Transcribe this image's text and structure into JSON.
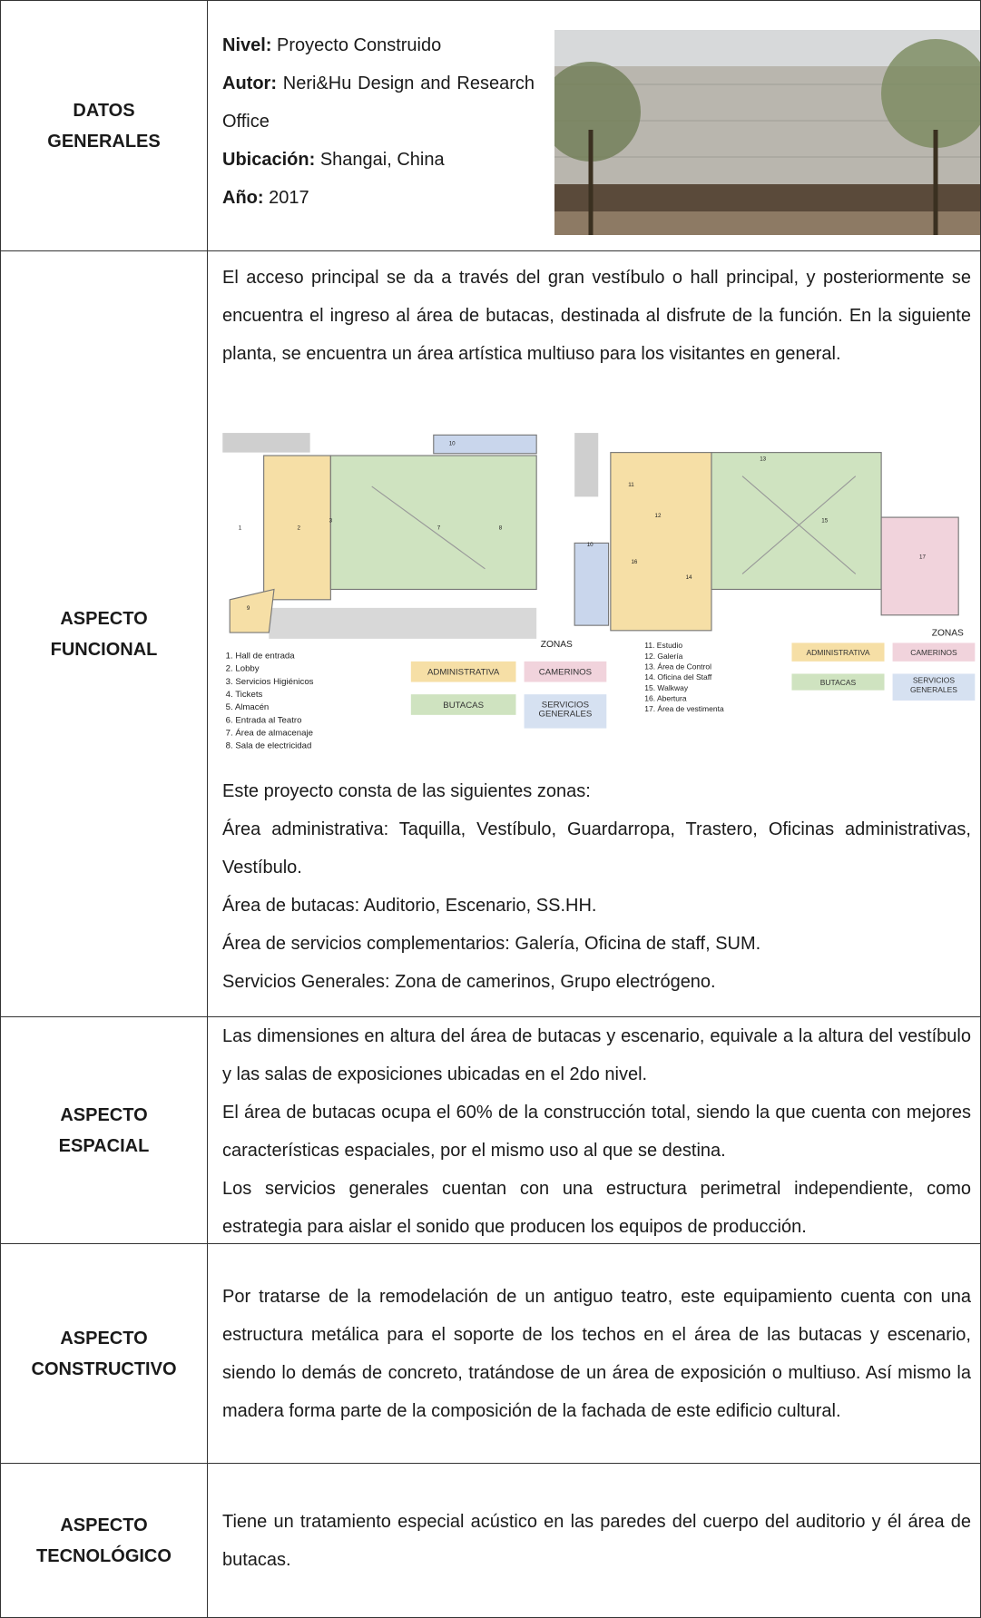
{
  "rows": [
    {
      "heading": [
        "DATOS",
        "GENERALES"
      ],
      "fields": [
        {
          "label": "Nivel:",
          "value": "Proyecto Construido"
        },
        {
          "label": "Autor:",
          "value": "Neri&Hu Design and Research Office"
        },
        {
          "label": "Ubicación:",
          "value": "Shangai, China"
        },
        {
          "label": "Año:",
          "value": "2017"
        }
      ]
    },
    {
      "heading": [
        "ASPECTO",
        "FUNCIONAL"
      ],
      "intro": "El acceso principal se da a través del gran vestíbulo o hall principal, y posteriormente se encuentra el ingreso al área de butacas, destinada al disfrute de la función. En la siguiente planta, se encuentra un área artística multiuso para los visitantes en general.",
      "plan": {
        "left_list": [
          "1.  Hall de entrada",
          "2.  Lobby",
          "3.  Servicios Higiénicos",
          "4.  Tickets",
          "5.  Almacén",
          "6.  Entrada al Teatro",
          "7.  Área de almacenaje",
          "8.  Sala de electricidad"
        ],
        "right_list": [
          "11. Estudio",
          "12. Galería",
          "13. Área de Control",
          "14. Oficina del Staff",
          "15. Walkway",
          "16. Abertura",
          "17. Área de vestimenta"
        ],
        "zones_title": "ZONAS",
        "zones": [
          "ADMINISTRATIVA",
          "CAMERINOS",
          "BUTACAS",
          "SERVICIOS GENERALES"
        ],
        "room_numbers": [
          "1",
          "2",
          "3",
          "7",
          "8",
          "9",
          "10",
          "10",
          "11",
          "12",
          "13",
          "14",
          "15",
          "16",
          "17"
        ]
      },
      "lines": [
        "Este proyecto consta de las siguientes zonas:",
        "Área administrativa: Taquilla, Vestíbulo, Guardarropa, Trastero, Oficinas administrativas, Vestíbulo.",
        "Área de butacas: Auditorio, Escenario, SS.HH.",
        "Área de servicios complementarios: Galería, Oficina de staff, SUM.",
        "Servicios Generales: Zona de camerinos, Grupo electrógeno."
      ]
    },
    {
      "heading": [
        "ASPECTO",
        "ESPACIAL"
      ],
      "lines": [
        "Las dimensiones en altura del área de butacas y escenario, equivale a la altura del vestíbulo y las salas de exposiciones ubicadas en el 2do nivel.",
        "El área de butacas ocupa el 60% de la construcción total, siendo la que cuenta con mejores características espaciales, por el mismo uso al que se destina.",
        "Los servicios generales cuentan con una estructura perimetral independiente, como estrategia para aislar el sonido que producen los equipos de producción."
      ]
    },
    {
      "heading": [
        "ASPECTO",
        "CONSTRUCTIVO"
      ],
      "lines": [
        "Por tratarse de la remodelación de un antiguo teatro, este equipamiento cuenta con una estructura metálica para el soporte de los techos en el área de las butacas y escenario, siendo lo demás de concreto, tratándose de un área de exposición o multiuso. Así mismo la madera forma parte de la composición de la fachada de este edificio cultural."
      ]
    },
    {
      "heading": [
        "ASPECTO",
        "TECNOLÓGICO"
      ],
      "lines": [
        "Tiene un tratamiento especial acústico en las paredes del cuerpo del auditorio y él área de butacas."
      ]
    }
  ]
}
